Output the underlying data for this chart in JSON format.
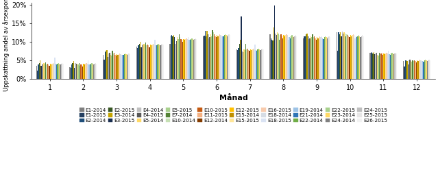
{
  "title": "",
  "xlabel": "Månad",
  "ylabel": "Uppskattning andel av årsexponeri",
  "ylim": [
    0,
    0.205
  ],
  "yticks": [
    0,
    0.05,
    0.1,
    0.15,
    0.2
  ],
  "ytick_labels": [
    "0%",
    "5%",
    "10%",
    "15%",
    "20%"
  ],
  "months": [
    1,
    2,
    3,
    4,
    5,
    6,
    7,
    8,
    9,
    10,
    11,
    12
  ],
  "series": [
    {
      "label": "E1-2014",
      "color": "#7f7f7f",
      "values": [
        0.035,
        0.032,
        0.065,
        0.086,
        0.095,
        0.115,
        0.08,
        0.12,
        0.11,
        0.125,
        0.07,
        0.048
      ]
    },
    {
      "label": "E1-2015",
      "color": "#243f60",
      "values": [
        0.022,
        0.03,
        0.052,
        0.083,
        0.117,
        0.117,
        0.078,
        0.11,
        0.115,
        0.075,
        0.07,
        0.033
      ]
    },
    {
      "label": "E2-2014",
      "color": "#1f4e79",
      "values": [
        0.038,
        0.038,
        0.072,
        0.09,
        0.119,
        0.13,
        0.083,
        0.105,
        0.115,
        0.125,
        0.072,
        0.05
      ]
    },
    {
      "label": "E2-2015",
      "color": "#375623",
      "values": [
        0.043,
        0.043,
        0.075,
        0.095,
        0.115,
        0.115,
        0.095,
        0.103,
        0.12,
        0.12,
        0.068,
        0.05
      ]
    },
    {
      "label": "E3-2014",
      "color": "#c5a400",
      "values": [
        0.05,
        0.048,
        0.078,
        0.1,
        0.118,
        0.13,
        0.105,
        0.138,
        0.122,
        0.126,
        0.072,
        0.048
      ]
    },
    {
      "label": "E3-2015",
      "color": "#1a2e50",
      "values": [
        0.035,
        0.03,
        0.06,
        0.085,
        0.112,
        0.12,
        0.168,
        0.197,
        0.115,
        0.115,
        0.066,
        0.038
      ]
    },
    {
      "label": "E4-2014",
      "color": "#c0c0c0",
      "values": [
        0.04,
        0.042,
        0.068,
        0.09,
        0.095,
        0.11,
        0.075,
        0.122,
        0.108,
        0.128,
        0.068,
        0.05
      ]
    },
    {
      "label": "E4-2015",
      "color": "#595959",
      "values": [
        0.038,
        0.04,
        0.07,
        0.092,
        0.101,
        0.112,
        0.073,
        0.118,
        0.11,
        0.122,
        0.07,
        0.052
      ]
    },
    {
      "label": "E5-2014",
      "color": "#ffd966",
      "values": [
        0.042,
        0.04,
        0.065,
        0.095,
        0.112,
        0.12,
        0.08,
        0.125,
        0.115,
        0.125,
        0.065,
        0.048
      ]
    },
    {
      "label": "E5-2015",
      "color": "#a9d18e",
      "values": [
        0.04,
        0.038,
        0.063,
        0.093,
        0.108,
        0.115,
        0.078,
        0.122,
        0.112,
        0.122,
        0.063,
        0.046
      ]
    },
    {
      "label": "E7-2014",
      "color": "#548235",
      "values": [
        0.045,
        0.042,
        0.075,
        0.098,
        0.12,
        0.132,
        0.095,
        0.105,
        0.12,
        0.115,
        0.07,
        0.05
      ]
    },
    {
      "label": "E10-2014",
      "color": "#c6e0b4",
      "values": [
        0.038,
        0.035,
        0.068,
        0.09,
        0.112,
        0.125,
        0.08,
        0.118,
        0.112,
        0.12,
        0.067,
        0.048
      ]
    },
    {
      "label": "E10-2015",
      "color": "#c55a11",
      "values": [
        0.04,
        0.038,
        0.07,
        0.092,
        0.108,
        0.12,
        0.082,
        0.12,
        0.115,
        0.118,
        0.069,
        0.05
      ]
    },
    {
      "label": "E11-2015",
      "color": "#f4b183",
      "values": [
        0.038,
        0.038,
        0.065,
        0.09,
        0.105,
        0.115,
        0.078,
        0.115,
        0.11,
        0.115,
        0.068,
        0.048
      ]
    },
    {
      "label": "E12-2014",
      "color": "#843c00",
      "values": [
        0.035,
        0.033,
        0.062,
        0.085,
        0.1,
        0.112,
        0.075,
        0.11,
        0.105,
        0.112,
        0.065,
        0.045
      ]
    },
    {
      "label": "E12-2015",
      "color": "#ffc000",
      "values": [
        0.04,
        0.04,
        0.067,
        0.092,
        0.108,
        0.118,
        0.08,
        0.118,
        0.112,
        0.118,
        0.068,
        0.05
      ]
    },
    {
      "label": "E15-2014",
      "color": "#bf8f00",
      "values": [
        0.038,
        0.038,
        0.065,
        0.09,
        0.105,
        0.115,
        0.078,
        0.115,
        0.11,
        0.115,
        0.067,
        0.048
      ]
    },
    {
      "label": "E15-2015",
      "color": "#ffe699",
      "values": [
        0.04,
        0.04,
        0.067,
        0.092,
        0.108,
        0.118,
        0.08,
        0.118,
        0.112,
        0.118,
        0.068,
        0.05
      ]
    },
    {
      "label": "E16-2015",
      "color": "#f8cbad",
      "values": [
        0.042,
        0.042,
        0.069,
        0.094,
        0.11,
        0.12,
        0.082,
        0.12,
        0.114,
        0.12,
        0.07,
        0.052
      ]
    },
    {
      "label": "E18-2014",
      "color": "#d6dce4",
      "values": [
        0.04,
        0.04,
        0.067,
        0.092,
        0.108,
        0.118,
        0.08,
        0.118,
        0.112,
        0.118,
        0.068,
        0.05
      ]
    },
    {
      "label": "E18-2015",
      "color": "#dae3f3",
      "values": [
        0.058,
        0.05,
        0.065,
        0.105,
        0.112,
        0.115,
        0.092,
        0.105,
        0.114,
        0.11,
        0.075,
        0.048
      ]
    },
    {
      "label": "E19-2014",
      "color": "#9dc3e6",
      "values": [
        0.04,
        0.038,
        0.065,
        0.09,
        0.105,
        0.115,
        0.078,
        0.112,
        0.11,
        0.115,
        0.066,
        0.048
      ]
    },
    {
      "label": "E21-2014",
      "color": "#2e75b6",
      "values": [
        0.038,
        0.038,
        0.065,
        0.09,
        0.105,
        0.115,
        0.075,
        0.11,
        0.108,
        0.112,
        0.065,
        0.047
      ]
    },
    {
      "label": "E22-2014",
      "color": "#70ad47",
      "values": [
        0.04,
        0.04,
        0.067,
        0.092,
        0.108,
        0.118,
        0.08,
        0.115,
        0.112,
        0.115,
        0.068,
        0.05
      ]
    },
    {
      "label": "E22-2015",
      "color": "#a9d18e",
      "values": [
        0.042,
        0.042,
        0.069,
        0.094,
        0.11,
        0.12,
        0.082,
        0.118,
        0.115,
        0.118,
        0.07,
        0.052
      ]
    },
    {
      "label": "E23-2014",
      "color": "#ffd966",
      "values": [
        0.04,
        0.04,
        0.067,
        0.092,
        0.108,
        0.118,
        0.08,
        0.115,
        0.112,
        0.115,
        0.068,
        0.05
      ]
    },
    {
      "label": "E24-2014",
      "color": "#808080",
      "values": [
        0.038,
        0.038,
        0.065,
        0.09,
        0.105,
        0.115,
        0.078,
        0.112,
        0.11,
        0.112,
        0.067,
        0.048
      ]
    },
    {
      "label": "E24-2015",
      "color": "#bfbfbf",
      "values": [
        0.04,
        0.04,
        0.067,
        0.092,
        0.108,
        0.118,
        0.08,
        0.115,
        0.112,
        0.115,
        0.068,
        0.05
      ]
    },
    {
      "label": "E25-2015",
      "color": "#e7e6e6",
      "values": [
        0.042,
        0.042,
        0.069,
        0.094,
        0.11,
        0.12,
        0.082,
        0.118,
        0.115,
        0.118,
        0.07,
        0.052
      ]
    },
    {
      "label": "E26-2015",
      "color": "#f2f2f2",
      "values": [
        0.04,
        0.04,
        0.067,
        0.092,
        0.108,
        0.118,
        0.08,
        0.115,
        0.112,
        0.115,
        0.068,
        0.05
      ]
    }
  ],
  "legend_rows": [
    [
      "E1-2014",
      "E1-2015",
      "E2-2014",
      "E2-2015",
      "E3-2014",
      "E3-2015",
      "E4-2014",
      "E4-2015",
      "E5-2014",
      "E5-2015"
    ],
    [
      "E7-2014",
      "E10-2014",
      "E10-2015",
      "E11-2015",
      "E12-2014",
      "E12-2015",
      "E15-2014",
      "E15-2015",
      "E16-2015",
      "E18-2014"
    ],
    [
      "E18-2015",
      "E19-2014",
      "E21-2014",
      "E22-2014",
      "E22-2015",
      "E23-2014",
      "E24-2014",
      "E24-2015",
      "E25-2015",
      "E26-2015"
    ]
  ],
  "figsize": [
    6.39,
    2.83
  ],
  "dpi": 100
}
